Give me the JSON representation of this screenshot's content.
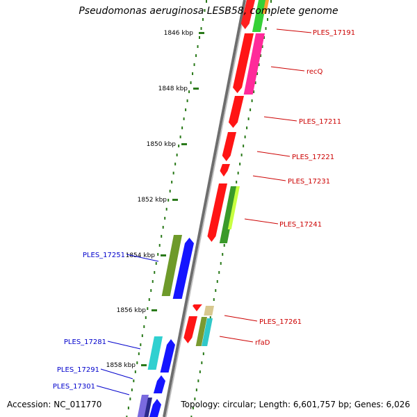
{
  "title": "Pseudomonas aeruginosa LESB58, complete genome",
  "accession": "Accession: NC_011770",
  "topology": "Topology: circular; Length: 6,601,757 bp; Genes: 6,026",
  "colors": {
    "backbone": "#7a7a7a",
    "tick": "#2a7a1a",
    "red_label": "#cc0000",
    "blue_label": "#0000cc"
  },
  "scale_ticks": [
    "1846 kbp",
    "1848 kbp",
    "1850 kbp",
    "1852 kbp",
    "1854 kbp",
    "1856 kbp",
    "1858 kbp"
  ],
  "gene_labels": [
    {
      "text": "PLES_17191",
      "strand": "forward"
    },
    {
      "text": "recQ",
      "strand": "forward"
    },
    {
      "text": "PLES_17211",
      "strand": "forward"
    },
    {
      "text": "PLES_17221",
      "strand": "forward"
    },
    {
      "text": "PLES_17231",
      "strand": "forward"
    },
    {
      "text": "PLES_17241",
      "strand": "forward"
    },
    {
      "text": "PLES_17251",
      "strand": "reverse"
    },
    {
      "text": "PLES_17261",
      "strand": "forward"
    },
    {
      "text": "rfaD",
      "strand": "forward"
    },
    {
      "text": "PLES_17281",
      "strand": "reverse"
    },
    {
      "text": "PLES_17291",
      "strand": "reverse"
    },
    {
      "text": "PLES_17301",
      "strand": "reverse"
    }
  ]
}
